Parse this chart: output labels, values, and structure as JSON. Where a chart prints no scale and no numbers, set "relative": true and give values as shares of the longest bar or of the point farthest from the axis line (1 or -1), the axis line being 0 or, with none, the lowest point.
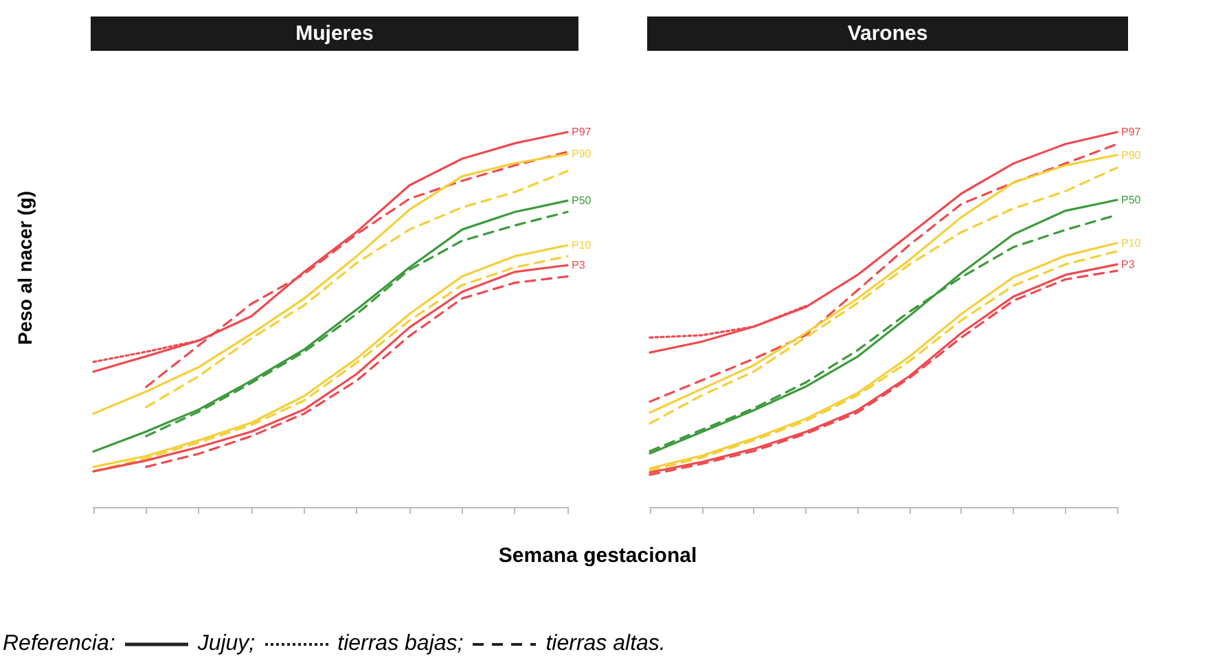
{
  "chart_data": [
    {
      "type": "line",
      "title": "Mujeres",
      "ylabel": "Peso al nacer (g)",
      "xlabel": "Semana gestacional",
      "relative": true,
      "tick_labels": false,
      "legend": false,
      "annotations": [
        "Referencia:",
        "Jujuy;",
        "tierras bajas;",
        "tierras altas."
      ],
      "categories": [
        null,
        null,
        null,
        null,
        null,
        null,
        null,
        null,
        null,
        null
      ],
      "series": [
        {
          "name": "P97",
          "color": "#ee4a4f",
          "line_style": "solid",
          "values": [
            0.361,
            0.402,
            0.444,
            0.509,
            0.627,
            0.734,
            0.858,
            0.929,
            0.97,
            1
          ]
        },
        {
          "color": "#ee4a4f",
          "line_style": "dotted",
          "values": [
            0.387,
            0.414,
            0.444,
            null,
            null,
            null,
            null,
            null,
            null,
            null
          ]
        },
        {
          "color": "#ee4a4f",
          "line_style": "dashed",
          "values": [
            null,
            0.32,
            0.431,
            0.542,
            0.621,
            0.728,
            0.822,
            0.87,
            0.911,
            0.947
          ]
        },
        {
          "name": "P90",
          "color": "#f4cf3a",
          "line_style": "solid",
          "values": [
            0.249,
            0.308,
            0.373,
            0.462,
            0.556,
            0.669,
            0.793,
            0.882,
            0.917,
            0.941
          ]
        },
        {
          "color": "#f4cf3a",
          "line_style": "dashed",
          "values": [
            null,
            0.266,
            0.349,
            0.45,
            0.538,
            0.651,
            0.74,
            0.799,
            0.84,
            0.896
          ]
        },
        {
          "name": "P50",
          "color": "#3d9a3d",
          "line_style": "solid",
          "values": [
            0.148,
            0.201,
            0.26,
            0.337,
            0.42,
            0.527,
            0.639,
            0.74,
            0.787,
            0.817
          ]
        },
        {
          "color": "#3d9a3d",
          "line_style": "dashed",
          "values": [
            null,
            0.189,
            0.254,
            0.331,
            0.414,
            0.515,
            0.633,
            0.71,
            0.751,
            0.787
          ]
        },
        {
          "name": "P10",
          "color": "#f4cf3a",
          "line_style": "solid",
          "values": [
            0.107,
            0.136,
            0.178,
            0.225,
            0.296,
            0.396,
            0.515,
            0.615,
            0.669,
            0.698
          ]
        },
        {
          "color": "#f4cf3a",
          "line_style": "dashed",
          "values": [
            0.095,
            0.13,
            0.172,
            0.219,
            0.284,
            0.385,
            0.497,
            0.592,
            0.639,
            0.669
          ]
        },
        {
          "name": "P3",
          "color": "#ee4a4f",
          "line_style": "solid",
          "values": [
            0.095,
            0.124,
            0.16,
            0.201,
            0.26,
            0.355,
            0.479,
            0.574,
            0.627,
            0.645
          ]
        },
        {
          "color": "#ee4a4f",
          "line_style": "dashed",
          "values": [
            null,
            0.107,
            0.142,
            0.189,
            0.249,
            0.337,
            0.456,
            0.556,
            0.598,
            0.615
          ]
        }
      ]
    },
    {
      "type": "line",
      "title": "Varones",
      "relative": true,
      "tick_labels": false,
      "legend": false,
      "categories": [
        null,
        null,
        null,
        null,
        null,
        null,
        null,
        null,
        null,
        null
      ],
      "series": [
        {
          "name": "P97",
          "color": "#ee4a4f",
          "line_style": "solid",
          "values": [
            0.412,
            0.441,
            0.481,
            0.533,
            0.619,
            0.727,
            0.836,
            0.916,
            0.968,
            1
          ]
        },
        {
          "color": "#ee4a4f",
          "line_style": "dotted",
          "values": [
            0.452,
            0.458,
            0.481,
            0.536,
            null,
            null,
            null,
            null,
            null,
            null
          ]
        },
        {
          "color": "#ee4a4f",
          "line_style": "dashed",
          "values": [
            0.281,
            0.338,
            0.395,
            0.458,
            0.578,
            0.699,
            0.808,
            0.865,
            0.916,
            0.968
          ]
        },
        {
          "name": "P90",
          "color": "#f4cf3a",
          "line_style": "solid",
          "values": [
            0.252,
            0.315,
            0.378,
            0.464,
            0.556,
            0.659,
            0.773,
            0.865,
            0.911,
            0.939
          ]
        },
        {
          "color": "#f4cf3a",
          "line_style": "dashed",
          "values": [
            0.223,
            0.298,
            0.361,
            0.452,
            0.544,
            0.647,
            0.733,
            0.796,
            0.842,
            0.905
          ]
        },
        {
          "name": "P50",
          "color": "#3d9a3d",
          "line_style": "solid",
          "values": [
            0.143,
            0.2,
            0.258,
            0.321,
            0.401,
            0.51,
            0.624,
            0.727,
            0.79,
            0.819
          ]
        },
        {
          "color": "#3d9a3d",
          "line_style": "dashed",
          "values": [
            0.149,
            0.206,
            0.263,
            0.332,
            0.418,
            0.521,
            0.613,
            0.693,
            0.739,
            0.779
          ]
        },
        {
          "name": "P10",
          "color": "#f4cf3a",
          "line_style": "solid",
          "values": [
            0.103,
            0.137,
            0.183,
            0.235,
            0.304,
            0.401,
            0.515,
            0.613,
            0.67,
            0.704
          ]
        },
        {
          "color": "#f4cf3a",
          "line_style": "dashed",
          "values": [
            0.097,
            0.132,
            0.178,
            0.229,
            0.298,
            0.389,
            0.498,
            0.59,
            0.647,
            0.682
          ]
        },
        {
          "name": "P3",
          "color": "#ee4a4f",
          "line_style": "solid",
          "values": [
            0.092,
            0.12,
            0.155,
            0.2,
            0.258,
            0.349,
            0.464,
            0.561,
            0.619,
            0.647
          ]
        },
        {
          "color": "#ee4a4f",
          "line_style": "dashed",
          "values": [
            0.086,
            0.115,
            0.149,
            0.195,
            0.252,
            0.344,
            0.452,
            0.55,
            0.607,
            0.63
          ]
        }
      ]
    }
  ]
}
